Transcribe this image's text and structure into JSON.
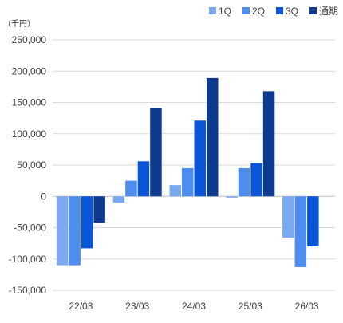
{
  "chart_data": {
    "type": "bar",
    "unit_label": "（千円）",
    "categories": [
      "22/03",
      "23/03",
      "24/03",
      "25/03",
      "26/03"
    ],
    "series": [
      {
        "name": "1Q",
        "color": "#7BA9F0",
        "values": [
          -110000,
          -10000,
          18000,
          -2000,
          -66000
        ]
      },
      {
        "name": "2Q",
        "color": "#4D8DF0",
        "values": [
          -110000,
          25000,
          45000,
          45000,
          -113000
        ]
      },
      {
        "name": "3Q",
        "color": "#0A55D8",
        "values": [
          -83000,
          56000,
          121000,
          53000,
          -80000
        ]
      },
      {
        "name": "通期",
        "color": "#0B3A8E",
        "values": [
          -42000,
          141000,
          189000,
          168000,
          null
        ]
      }
    ],
    "ylim": [
      -150000,
      250000
    ],
    "yticks": [
      250000,
      200000,
      150000,
      100000,
      50000,
      0,
      -50000,
      -100000,
      -150000
    ],
    "ytick_labels": [
      "250,000",
      "200,000",
      "150,000",
      "100,000",
      "50,000",
      "0",
      "-50,000",
      "-100,000",
      "-150,000"
    ],
    "grid": true,
    "legend_position": "top-right"
  }
}
